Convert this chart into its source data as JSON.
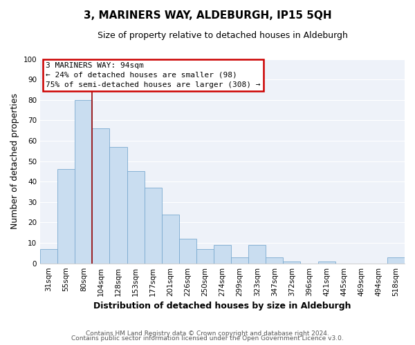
{
  "title": "3, MARINERS WAY, ALDEBURGH, IP15 5QH",
  "subtitle": "Size of property relative to detached houses in Aldeburgh",
  "xlabel": "Distribution of detached houses by size in Aldeburgh",
  "ylabel": "Number of detached properties",
  "bar_labels": [
    "31sqm",
    "55sqm",
    "80sqm",
    "104sqm",
    "128sqm",
    "153sqm",
    "177sqm",
    "201sqm",
    "226sqm",
    "250sqm",
    "274sqm",
    "299sqm",
    "323sqm",
    "347sqm",
    "372sqm",
    "396sqm",
    "421sqm",
    "445sqm",
    "469sqm",
    "494sqm",
    "518sqm"
  ],
  "bar_values": [
    7,
    46,
    80,
    66,
    57,
    45,
    37,
    24,
    12,
    7,
    9,
    3,
    9,
    3,
    1,
    0,
    1,
    0,
    0,
    0,
    3
  ],
  "bar_color": "#c9ddf0",
  "bar_edge_color": "#7aaad0",
  "vline_color": "#990000",
  "annotation_title": "3 MARINERS WAY: 94sqm",
  "annotation_line1": "← 24% of detached houses are smaller (98)",
  "annotation_line2": "75% of semi-detached houses are larger (308) →",
  "annotation_box_color": "#ffffff",
  "annotation_box_edge": "#cc0000",
  "ylim": [
    0,
    100
  ],
  "yticks": [
    0,
    10,
    20,
    30,
    40,
    50,
    60,
    70,
    80,
    90,
    100
  ],
  "footnote1": "Contains HM Land Registry data © Crown copyright and database right 2024.",
  "footnote2": "Contains public sector information licensed under the Open Government Licence v3.0.",
  "bg_color": "#eef2f9",
  "fig_bg_color": "#ffffff",
  "grid_color": "#ffffff",
  "title_fontsize": 11,
  "subtitle_fontsize": 9,
  "ylabel_fontsize": 9,
  "xlabel_fontsize": 9,
  "tick_fontsize": 7.5,
  "ann_fontsize": 8,
  "footnote_fontsize": 6.5
}
